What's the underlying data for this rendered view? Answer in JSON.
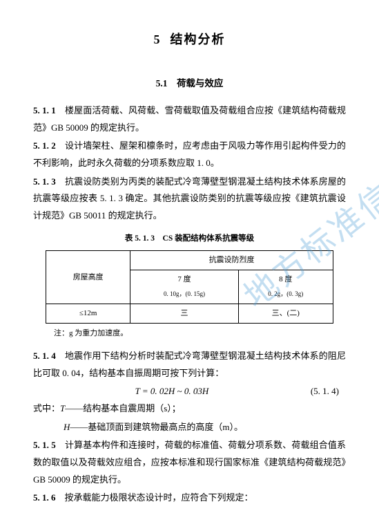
{
  "chapter": {
    "number": "5",
    "title": "结构分析"
  },
  "section": {
    "number": "5.1",
    "title": "荷载与效应"
  },
  "clauses": {
    "c511": {
      "num": "5. 1. 1",
      "text": "楼屋面活荷载、风荷载、雪荷载取值及荷载组合应按《建筑结构荷载规范》GB 50009 的规定执行。"
    },
    "c512": {
      "num": "5. 1. 2",
      "text": "设计墙架柱、屋架和檩条时，应考虑由于风吸力等作用引起构件受力的不利影响，此时永久荷载的分项系数应取 1. 0。"
    },
    "c513": {
      "num": "5. 1. 3",
      "text": "抗震设防类别为丙类的装配式冷弯薄壁型钢混凝土结构技术体系房屋的抗震等级应按表 5. 1. 3 确定。其他抗震设防类别的抗震等级应按《建筑抗震设计规范》GB 50011 的规定执行。"
    },
    "c514": {
      "num": "5. 1. 4",
      "text_a": "地震作用下结构分析时装配式冷弯薄壁型钢混凝土结构技术体系的阻尼比可取 0. 04，结构基本自振周期可按下列计算：",
      "formula": "T = 0. 02H ~ 0. 03H",
      "formula_num": "(5. 1. 4)",
      "where_label": "式中：",
      "where1_sym": "T",
      "where1_txt": "——结构基本自震周期（s）；",
      "where2_sym": "H",
      "where2_txt": "——基础顶面到建筑物最高点的高度（m）。"
    },
    "c515": {
      "num": "5. 1. 5",
      "text": "计算基本构件和连接时，荷载的标准值、荷载分项系数、荷载组合值系数的取值以及荷载效应组合，应按本标准和现行国家标准《建筑结构荷载规范》GB 50009 的规定执行。"
    },
    "c516": {
      "num": "5. 1. 6",
      "text": "按承载能力极限状态设计时，应符合下列规定："
    }
  },
  "table": {
    "caption": "表 5. 1. 3　CS 装配结构体系抗震等级",
    "col0_header": "房屋高度",
    "span_header": "抗震设防烈度",
    "col1_h1": "7 度",
    "col1_h2": "0. 10g，(0. 15g)",
    "col2_h1": "8 度",
    "col2_h2": "0. 2g，(0. 3g)",
    "row1_c0": "≤12m",
    "row1_c1": "三",
    "row1_c2": "三、(二)",
    "note": "注：g 为重力加速度。"
  },
  "watermark": "地方标准信",
  "colors": {
    "text": "#000000",
    "bg": "#ffffff",
    "watermark": "rgba(74,155,212,0.33)"
  }
}
